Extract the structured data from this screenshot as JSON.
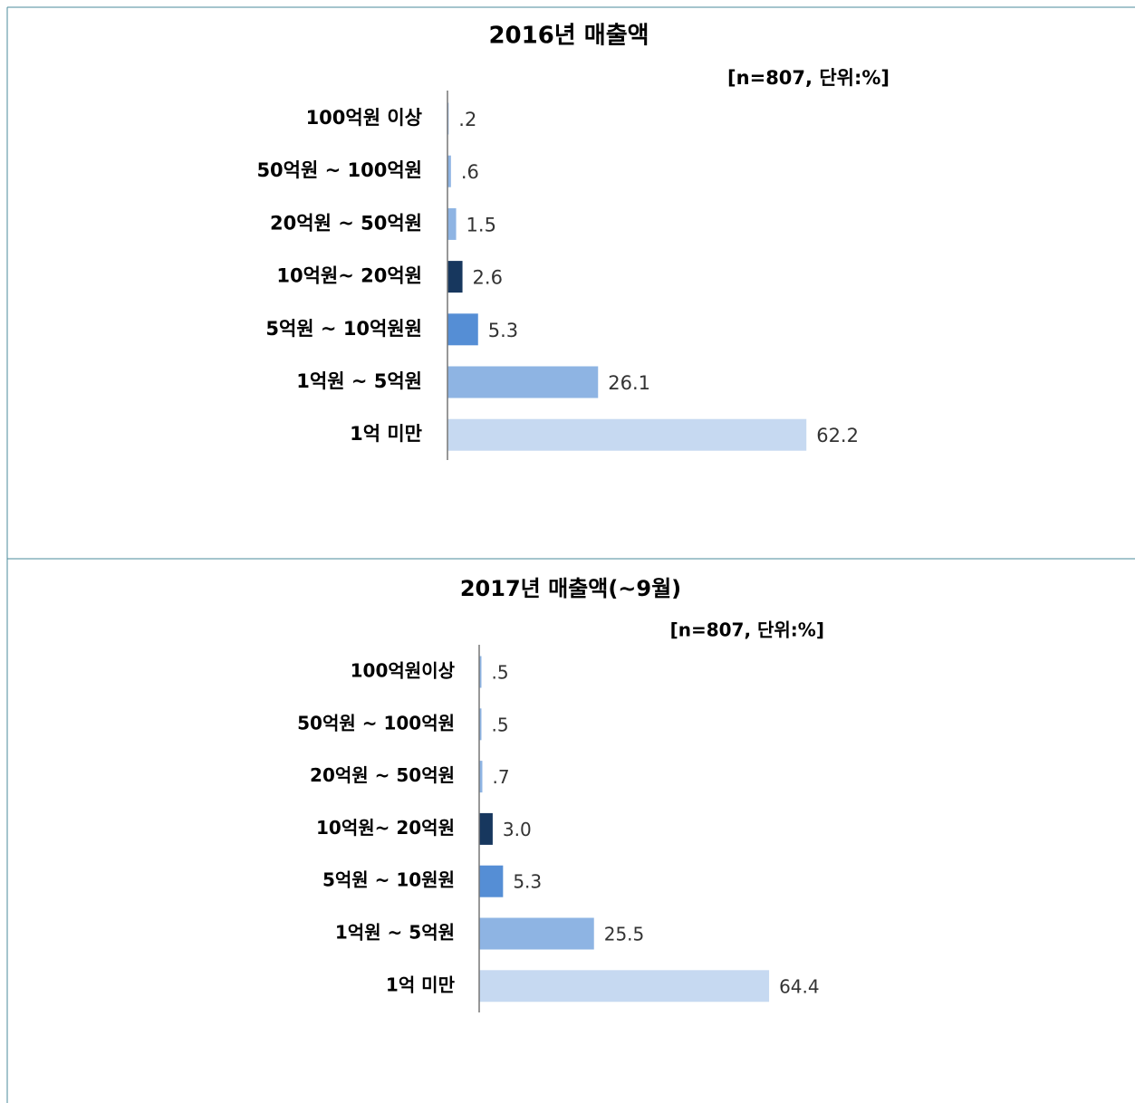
{
  "chart_data": [
    {
      "type": "bar",
      "orientation": "horizontal",
      "title": "2016년 매출액",
      "subtitle": "[n=807, 단위:%]",
      "categories": [
        "100억원 이상",
        "50억원 ~ 100억원",
        "20억원 ~ 50억원",
        "10억원~ 20억원",
        "5억원 ~ 10억원원",
        "1억원 ~ 5억원",
        "1억 미만"
      ],
      "values": [
        0.2,
        0.6,
        1.5,
        2.6,
        5.3,
        26.1,
        62.2
      ],
      "value_labels": [
        ".2",
        ".6",
        "1.5",
        "2.6",
        "5.3",
        "26.1",
        "62.2"
      ],
      "colors": [
        "#8eb4e3",
        "#8eb4e3",
        "#8eb4e3",
        "#17375e",
        "#558ed5",
        "#8eb4e3",
        "#c6d9f1"
      ]
    },
    {
      "type": "bar",
      "orientation": "horizontal",
      "title": "2017년 매출액(~9월)",
      "subtitle": "[n=807, 단위:%]",
      "categories": [
        "100억원이상",
        "50억원 ~ 100억원",
        "20억원 ~ 50억원",
        "10억원~ 20억원",
        "5억원 ~ 10원원",
        "1억원 ~ 5억원",
        "1억 미만"
      ],
      "values": [
        0.5,
        0.5,
        0.7,
        3.0,
        5.3,
        25.5,
        64.4
      ],
      "value_labels": [
        ".5",
        ".5",
        ".7",
        "3.0",
        "5.3",
        "25.5",
        "64.4"
      ],
      "colors": [
        "#8eb4e3",
        "#8eb4e3",
        "#8eb4e3",
        "#17375e",
        "#558ed5",
        "#8eb4e3",
        "#c6d9f1"
      ]
    }
  ]
}
